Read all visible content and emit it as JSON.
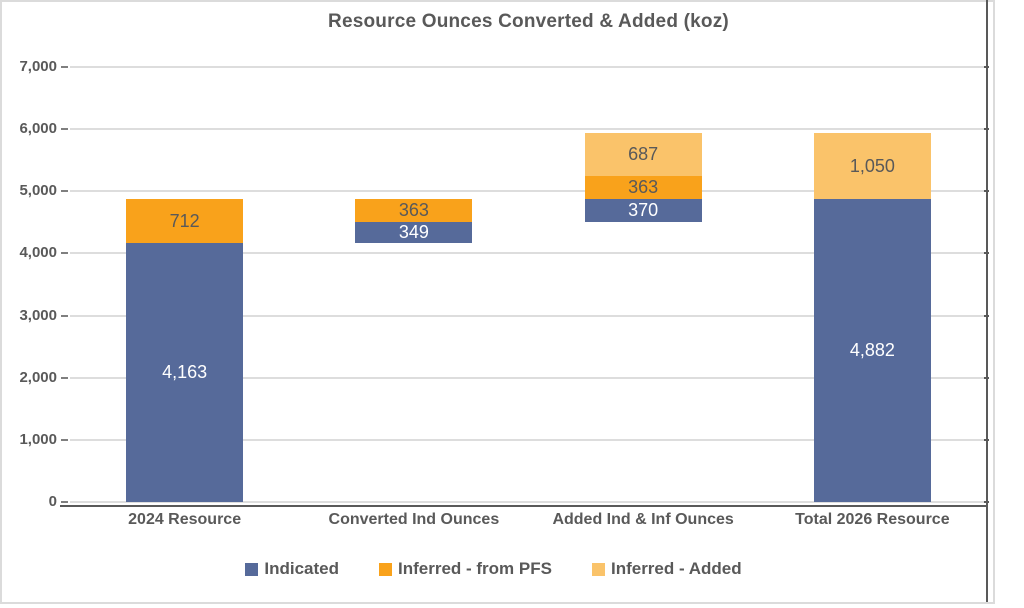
{
  "chart_data": {
    "type": "bar",
    "subtype": "stacked-waterfall",
    "title": "Resource Ounces Converted & Added (koz)",
    "grid": true,
    "legend_position": "bottom",
    "categories": [
      "2024 Resource",
      "Converted Ind Ounces",
      "Added Ind & Inf Ounces",
      "Total 2026 Resource"
    ],
    "series": [
      {
        "name": "Indicated",
        "color": "#566A9A",
        "label_color": "#FFFFFF"
      },
      {
        "name": "Inferred - from PFS",
        "color": "#F9A21B",
        "label_color": "#595959"
      },
      {
        "name": "Inferred - Added",
        "color": "#FAC36A",
        "label_color": "#595959"
      }
    ],
    "bars": [
      {
        "category": "2024 Resource",
        "base": 0,
        "segments": [
          {
            "series": "Indicated",
            "value": 4163,
            "label": "4,163"
          },
          {
            "series": "Inferred - from PFS",
            "value": 712,
            "label": "712"
          }
        ]
      },
      {
        "category": "Converted Ind Ounces",
        "base": 4163,
        "segments": [
          {
            "series": "Indicated",
            "value": 349,
            "label": "349"
          },
          {
            "series": "Inferred - from PFS",
            "value": 363,
            "label": "363"
          }
        ]
      },
      {
        "category": "Added Ind & Inf Ounces",
        "base": 4512,
        "segments": [
          {
            "series": "Indicated",
            "value": 370,
            "label": "370"
          },
          {
            "series": "Inferred - from PFS",
            "value": 363,
            "label": "363"
          },
          {
            "series": "Inferred - Added",
            "value": 687,
            "label": "687"
          }
        ]
      },
      {
        "category": "Total 2026 Resource",
        "base": 0,
        "segments": [
          {
            "series": "Indicated",
            "value": 4882,
            "label": "4,882"
          },
          {
            "series": "Inferred - Added",
            "value": 1050,
            "label": "1,050"
          }
        ]
      }
    ],
    "y_axis": {
      "min": 0,
      "max": 7000,
      "step": 1000,
      "ticks": [
        {
          "value": 0,
          "label": "0"
        },
        {
          "value": 1000,
          "label": "1,000"
        },
        {
          "value": 2000,
          "label": "2,000"
        },
        {
          "value": 3000,
          "label": "3,000"
        },
        {
          "value": 4000,
          "label": "4,000"
        },
        {
          "value": 5000,
          "label": "5,000"
        },
        {
          "value": 6000,
          "label": "6,000"
        },
        {
          "value": 7000,
          "label": "7,000"
        }
      ]
    },
    "legend": [
      "Indicated",
      "Inferred - from PFS",
      "Inferred - Added"
    ]
  },
  "colors": {
    "text": "#595959",
    "gridline": "#DDDDDD",
    "axis": "#595959",
    "frame": "#DBDBDB",
    "background": "#FFFFFF"
  }
}
